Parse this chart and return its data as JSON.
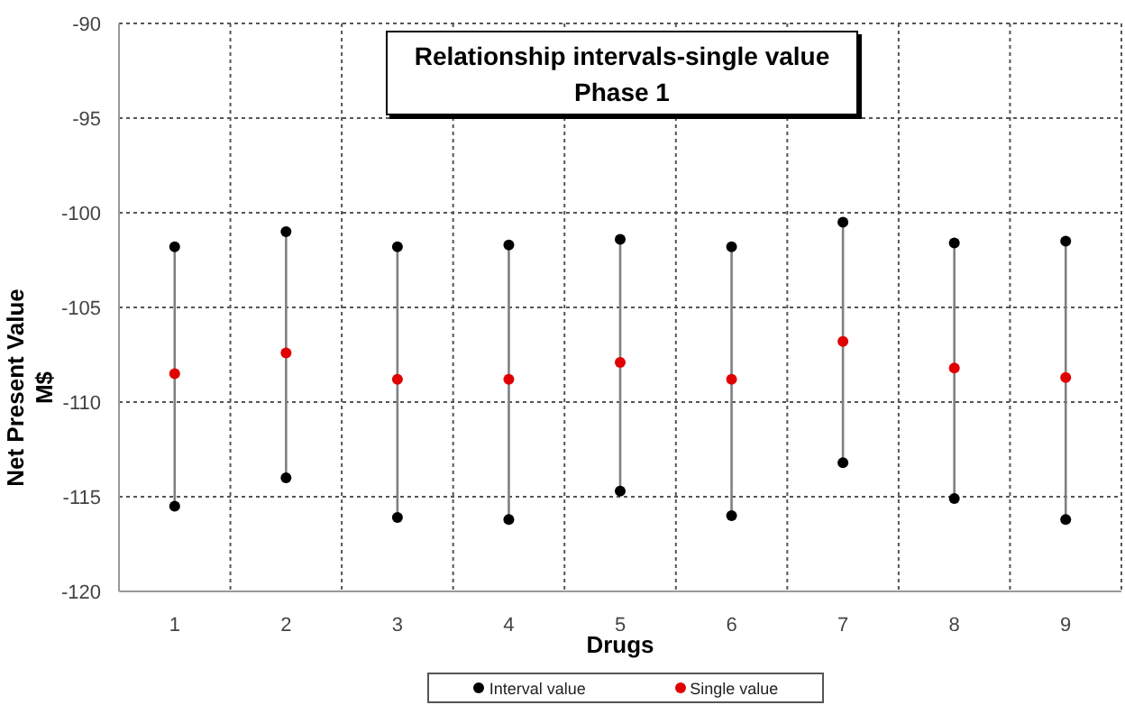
{
  "chart_data": {
    "type": "scatter",
    "title": "Relationship intervals-single value",
    "subtitle": "Phase 1",
    "xlabel": "Drugs",
    "ylabel": "Net Present Value\nM$",
    "categories": [
      "1",
      "2",
      "3",
      "4",
      "5",
      "6",
      "7",
      "8",
      "9"
    ],
    "series": [
      {
        "type": "line",
        "color": "#808080",
        "marker": "none",
        "x": [
          "1",
          "1"
        ],
        "values": [
          -101.8,
          -115.5
        ]
      },
      {
        "type": "line",
        "color": "#808080",
        "marker": "none",
        "x": [
          "2",
          "2"
        ],
        "values": [
          -101.0,
          -114.0
        ]
      },
      {
        "type": "line",
        "color": "#808080",
        "marker": "none",
        "x": [
          "3",
          "3"
        ],
        "values": [
          -101.8,
          -116.1
        ]
      },
      {
        "type": "line",
        "color": "#808080",
        "marker": "none",
        "x": [
          "4",
          "4"
        ],
        "values": [
          -101.7,
          -116.2
        ]
      },
      {
        "type": "line",
        "color": "#808080",
        "marker": "none",
        "x": [
          "5",
          "5"
        ],
        "values": [
          -101.4,
          -114.7
        ]
      },
      {
        "type": "line",
        "color": "#808080",
        "marker": "none",
        "x": [
          "6",
          "6"
        ],
        "values": [
          -101.8,
          -116.0
        ]
      },
      {
        "type": "line",
        "color": "#808080",
        "marker": "none",
        "x": [
          "7",
          "7"
        ],
        "values": [
          -100.5,
          -113.2
        ]
      },
      {
        "type": "line",
        "color": "#808080",
        "marker": "none",
        "x": [
          "8",
          "8"
        ],
        "values": [
          -101.6,
          -115.1
        ]
      },
      {
        "type": "line",
        "color": "#808080",
        "marker": "none",
        "x": [
          "9",
          "9"
        ],
        "values": [
          -101.5,
          -116.2
        ]
      },
      {
        "name": "Interval value",
        "color": "#000000",
        "values": [
          -101.8,
          -101.0,
          -101.8,
          -101.7,
          -101.4,
          -101.8,
          -100.5,
          -101.6,
          -101.5
        ]
      },
      {
        "color": "#000000",
        "values": [
          -115.5,
          -114.0,
          -116.1,
          -116.2,
          -114.7,
          -116.0,
          -113.2,
          -115.1,
          -116.2
        ]
      },
      {
        "name": "Single value",
        "color": "#e00000",
        "values": [
          -108.5,
          -107.4,
          -108.8,
          -108.8,
          -107.9,
          -108.8,
          -106.8,
          -108.2,
          -108.7
        ]
      }
    ],
    "ylim": [
      -120,
      -90
    ],
    "yticks": [
      -90,
      -95,
      -100,
      -105,
      -110,
      -115,
      -120
    ],
    "grid": true,
    "legend": "bottom",
    "marker": "circle"
  }
}
